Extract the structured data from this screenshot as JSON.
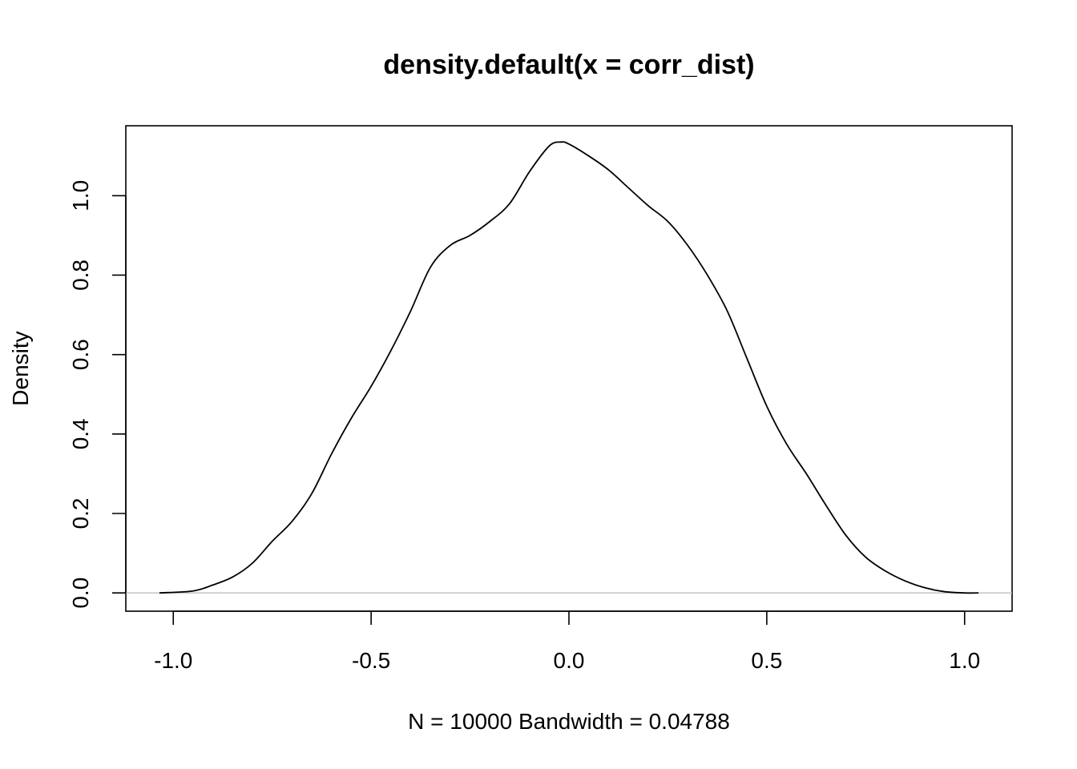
{
  "chart_data": {
    "type": "line",
    "title": "density.default(x = corr_dist)",
    "xlabel": "N = 10000   Bandwidth = 0.04788",
    "ylabel": "Density",
    "xlim": [
      -1.12,
      1.12
    ],
    "ylim": [
      -0.046,
      1.176
    ],
    "x_ticks": [
      -1.0,
      -0.5,
      0.0,
      0.5,
      1.0
    ],
    "x_tick_labels": [
      "-1.0",
      "-0.5",
      "0.0",
      "0.5",
      "1.0"
    ],
    "y_ticks": [
      0.0,
      0.2,
      0.4,
      0.6,
      0.8,
      1.0
    ],
    "y_tick_labels": [
      "0.0",
      "0.2",
      "0.4",
      "0.6",
      "0.8",
      "1.0"
    ],
    "zero_reference_line": true,
    "grid": false,
    "series": [
      {
        "x": [
          -1.035,
          -0.95,
          -0.9,
          -0.85,
          -0.8,
          -0.75,
          -0.7,
          -0.65,
          -0.6,
          -0.55,
          -0.5,
          -0.45,
          -0.4,
          -0.35,
          -0.3,
          -0.25,
          -0.2,
          -0.15,
          -0.1,
          -0.05,
          -0.02,
          0.0,
          0.05,
          0.1,
          0.15,
          0.2,
          0.25,
          0.3,
          0.35,
          0.4,
          0.45,
          0.5,
          0.55,
          0.6,
          0.65,
          0.7,
          0.75,
          0.8,
          0.85,
          0.9,
          0.95,
          1.0,
          1.035
        ],
        "values": [
          0.0,
          0.005,
          0.02,
          0.04,
          0.075,
          0.13,
          0.18,
          0.25,
          0.35,
          0.44,
          0.52,
          0.61,
          0.71,
          0.82,
          0.875,
          0.9,
          0.935,
          0.98,
          1.06,
          1.125,
          1.135,
          1.13,
          1.1,
          1.065,
          1.02,
          0.975,
          0.935,
          0.875,
          0.8,
          0.71,
          0.59,
          0.47,
          0.375,
          0.3,
          0.22,
          0.145,
          0.09,
          0.055,
          0.03,
          0.013,
          0.003,
          0.0,
          0.0
        ]
      }
    ]
  }
}
